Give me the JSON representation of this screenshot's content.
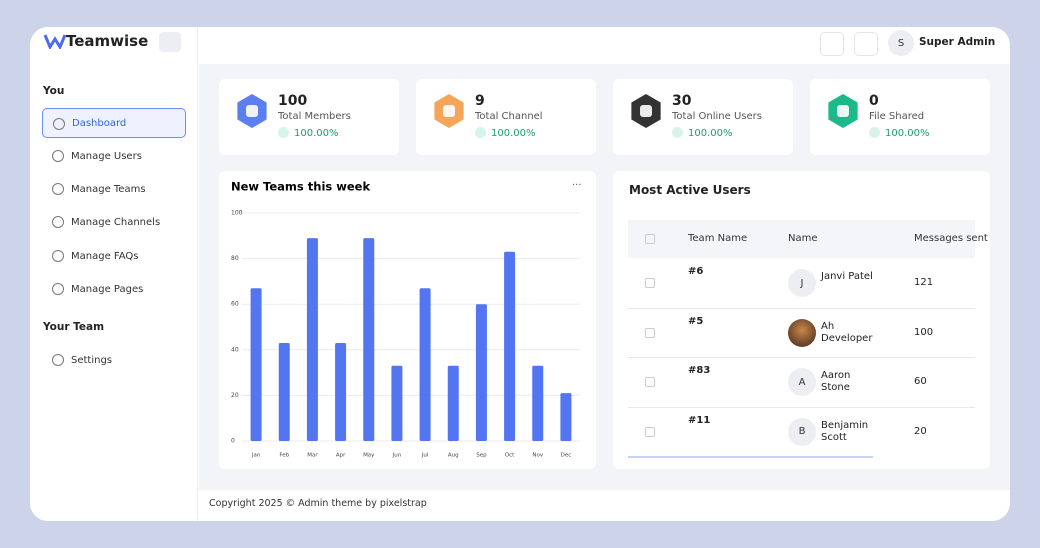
{
  "logo": "Teamwise",
  "header": {
    "avatar": "S",
    "user": "Super Admin"
  },
  "sidebar": {
    "sections": [
      {
        "title": "You",
        "items": [
          "Dashboard",
          "Manage Users",
          "Manage Teams",
          "Manage Channels",
          "Manage FAQs",
          "Manage Pages"
        ]
      },
      {
        "title": "Your Team",
        "items": [
          "Settings"
        ]
      }
    ]
  },
  "stats": [
    {
      "value": 100,
      "label": "Total Members",
      "change": "100.00%"
    },
    {
      "value": 9,
      "label": "Total Channel",
      "change": "100.00%"
    },
    {
      "value": 30,
      "label": "Total Online Users",
      "change": "100.00%"
    },
    {
      "value": 0,
      "label": "File Shared",
      "change": "100.00%"
    }
  ],
  "chart_data": {
    "type": "bar",
    "title": "New Teams this week",
    "menu": "···",
    "categories": [
      "Jan",
      "Feb",
      "Mar",
      "Apr",
      "May",
      "Jun",
      "Jul",
      "Aug",
      "Sep",
      "Oct",
      "Nov",
      "Dec"
    ],
    "values": [
      67,
      43,
      89,
      43,
      89,
      33,
      67,
      33,
      60,
      83,
      33,
      21
    ],
    "color": "#5475f2",
    "ylim": [
      0,
      100
    ],
    "yticks": [
      0,
      20,
      40,
      60,
      80,
      100
    ],
    "grid": true
  },
  "table": {
    "title": "Most Active Users",
    "columns": [
      "Team Name",
      "Name",
      "Messages sent"
    ],
    "rows": [
      [
        "#6",
        "Janvi Patel",
        "121"
      ],
      [
        "#5",
        "Ah Developer",
        "100"
      ],
      [
        "#83",
        "Aaron Stone",
        "60"
      ],
      [
        "#11",
        "Benjamin Scott",
        "20"
      ]
    ],
    "initials": [
      "J",
      null,
      "A",
      "B"
    ]
  },
  "footer": "Copyright 2025 © Admin theme by pixelstrap"
}
